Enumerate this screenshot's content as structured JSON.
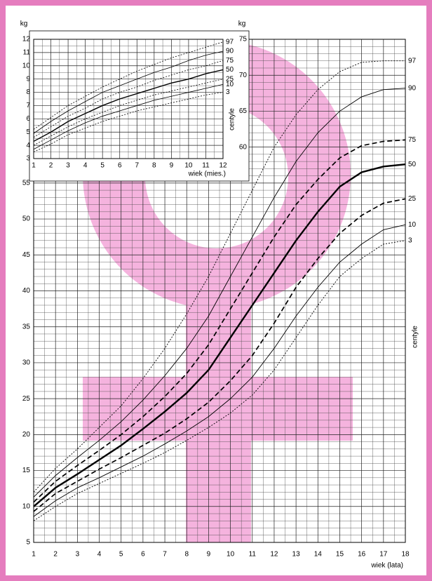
{
  "chart_data": [
    {
      "type": "line",
      "ylabel": "kg",
      "xlabel": "wiek (lata)",
      "series_label": "centyle",
      "x": [
        1,
        2,
        3,
        4,
        5,
        6,
        7,
        8,
        9,
        10,
        11,
        12,
        13,
        14,
        15,
        16,
        17,
        18
      ],
      "xlim": [
        1,
        18
      ],
      "ylim": [
        5,
        75
      ],
      "xticks": [
        1,
        2,
        3,
        4,
        5,
        6,
        7,
        8,
        9,
        10,
        11,
        12,
        13,
        14,
        15,
        16,
        17,
        18
      ],
      "yticks": [
        5,
        10,
        15,
        20,
        25,
        30,
        35,
        40,
        45,
        50,
        55,
        60,
        65,
        70,
        75
      ],
      "grid": true,
      "series": [
        {
          "name": "97",
          "color": "#000000",
          "style": "dotted",
          "width": 0.9,
          "values": [
            12.0,
            15.3,
            18.0,
            21.0,
            24.0,
            27.8,
            32.0,
            36.8,
            42.0,
            48.0,
            54.0,
            60.0,
            64.5,
            68.0,
            70.5,
            71.8,
            72.0,
            72.0
          ]
        },
        {
          "name": "90",
          "color": "#000000",
          "style": "solid",
          "width": 0.9,
          "values": [
            11.3,
            14.3,
            16.8,
            19.2,
            21.8,
            24.8,
            28.2,
            32.0,
            36.5,
            42.0,
            47.5,
            53.0,
            58.0,
            62.0,
            65.0,
            67.0,
            68.0,
            68.2
          ]
        },
        {
          "name": "75",
          "color": "#000000",
          "style": "dashed",
          "width": 1.7,
          "values": [
            10.6,
            13.5,
            15.7,
            17.8,
            20.0,
            22.5,
            25.3,
            28.5,
            32.5,
            37.5,
            42.5,
            47.5,
            52.0,
            55.5,
            58.5,
            60.2,
            60.8,
            61.0
          ]
        },
        {
          "name": "50",
          "color": "#000000",
          "style": "solid",
          "width": 2.4,
          "values": [
            10.0,
            12.6,
            14.5,
            16.5,
            18.5,
            20.8,
            23.2,
            25.8,
            29.0,
            33.5,
            38.0,
            42.5,
            47.0,
            51.0,
            54.5,
            56.5,
            57.3,
            57.6
          ]
        },
        {
          "name": "25",
          "color": "#000000",
          "style": "dashed",
          "width": 1.7,
          "values": [
            9.3,
            11.8,
            13.5,
            15.2,
            16.8,
            18.5,
            20.2,
            22.2,
            24.5,
            27.5,
            31.0,
            35.5,
            40.5,
            44.5,
            48.0,
            50.5,
            52.2,
            52.8
          ]
        },
        {
          "name": "10",
          "color": "#000000",
          "style": "solid",
          "width": 0.9,
          "values": [
            8.6,
            10.8,
            12.6,
            14.0,
            15.5,
            17.0,
            18.7,
            20.5,
            22.5,
            25.0,
            28.0,
            32.0,
            36.5,
            40.5,
            44.0,
            46.5,
            48.5,
            49.2
          ]
        },
        {
          "name": "3",
          "color": "#000000",
          "style": "dotted",
          "width": 0.9,
          "values": [
            8.0,
            10.0,
            11.8,
            13.2,
            14.6,
            16.0,
            17.5,
            19.2,
            21.0,
            23.0,
            25.5,
            29.0,
            33.5,
            38.0,
            42.0,
            44.5,
            46.5,
            47.0
          ]
        }
      ]
    },
    {
      "type": "line",
      "ylabel": "kg",
      "xlabel": "wiek (mies.)",
      "series_label": "centyle",
      "x": [
        1,
        2,
        3,
        4,
        5,
        6,
        7,
        8,
        9,
        10,
        11,
        12
      ],
      "xlim": [
        1,
        12
      ],
      "ylim": [
        3,
        12
      ],
      "xticks": [
        1,
        2,
        3,
        4,
        5,
        6,
        7,
        8,
        9,
        10,
        11,
        12
      ],
      "yticks": [
        3,
        4,
        5,
        6,
        7,
        8,
        9,
        10,
        11,
        12
      ],
      "grid": true,
      "series": [
        {
          "name": "97",
          "color": "#000000",
          "style": "dotted",
          "width": 0.8,
          "values": [
            5.2,
            6.1,
            7.0,
            7.7,
            8.4,
            9.0,
            9.6,
            10.1,
            10.6,
            11.0,
            11.4,
            11.8
          ]
        },
        {
          "name": "90",
          "color": "#000000",
          "style": "solid",
          "width": 0.8,
          "values": [
            4.9,
            5.8,
            6.6,
            7.3,
            8.0,
            8.5,
            9.0,
            9.5,
            9.9,
            10.4,
            10.8,
            11.1
          ]
        },
        {
          "name": "75",
          "color": "#000000",
          "style": "dotted",
          "width": 0.8,
          "values": [
            4.6,
            5.4,
            6.2,
            6.8,
            7.5,
            8.0,
            8.4,
            8.9,
            9.3,
            9.7,
            10.0,
            10.4
          ]
        },
        {
          "name": "50",
          "color": "#000000",
          "style": "solid",
          "width": 1.4,
          "values": [
            4.3,
            5.0,
            5.8,
            6.4,
            7.0,
            7.5,
            7.9,
            8.3,
            8.7,
            9.0,
            9.4,
            9.7
          ]
        },
        {
          "name": "25",
          "color": "#000000",
          "style": "dotted",
          "width": 0.8,
          "values": [
            4.0,
            4.7,
            5.4,
            6.0,
            6.5,
            7.0,
            7.4,
            7.8,
            8.1,
            8.4,
            8.7,
            9.0
          ]
        },
        {
          "name": "10",
          "color": "#000000",
          "style": "solid",
          "width": 0.8,
          "values": [
            3.7,
            4.4,
            5.1,
            5.7,
            6.2,
            6.6,
            7.0,
            7.4,
            7.7,
            8.0,
            8.3,
            8.6
          ]
        },
        {
          "name": "3",
          "color": "#000000",
          "style": "dotted",
          "width": 0.8,
          "values": [
            3.5,
            4.1,
            4.8,
            5.3,
            5.8,
            6.2,
            6.6,
            6.9,
            7.2,
            7.5,
            7.8,
            8.0
          ]
        }
      ]
    }
  ]
}
